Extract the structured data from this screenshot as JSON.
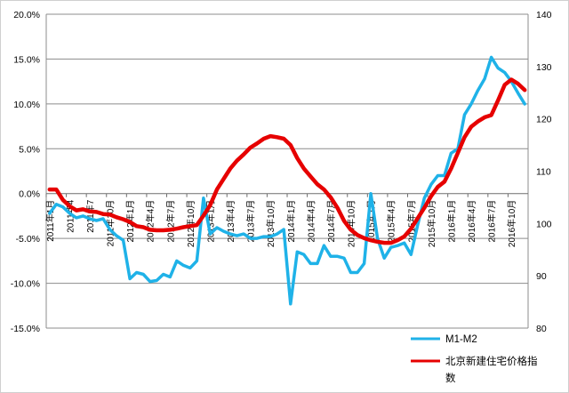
{
  "chart_data": {
    "type": "line",
    "title": "",
    "xlabel": "",
    "ylabel": "",
    "grid": true,
    "legend_position": "bottom-right",
    "y_left": {
      "min": -0.15,
      "max": 0.2,
      "ticks": [
        -0.15,
        -0.1,
        -0.05,
        0,
        0.05,
        0.1,
        0.15,
        0.2
      ],
      "tick_labels": [
        "-15.0%",
        "-10.0%",
        "-5.0%",
        "0.0%",
        "5.0%",
        "10.0%",
        "15.0%",
        "20.0%"
      ]
    },
    "y_right": {
      "min": 80,
      "max": 140,
      "ticks": [
        80,
        90,
        100,
        110,
        120,
        130,
        140
      ],
      "tick_labels": [
        "80",
        "90",
        "100",
        "110",
        "120",
        "130",
        "140"
      ]
    },
    "x_tick_labels": [
      "2011年1月",
      "2011年4月",
      "2011年7月",
      "2011年10月",
      "2012年1月",
      "2012年4月",
      "2012年7月",
      "2012年10月",
      "2013年1月",
      "2013年4月",
      "2013年7月",
      "2013年10月",
      "2014年1月",
      "2014年4月",
      "2014年7月",
      "2014年10月",
      "2015年1月",
      "2015年4月",
      "2015年7月",
      "2015年10月",
      "2016年1月",
      "2016年4月",
      "2016年7月",
      "2016年10月"
    ],
    "x_tick_display": [
      "2011年1月",
      "2011年4",
      "2011年7",
      "2011年10月",
      "2012年1月",
      "2012年4月",
      "2012年7月",
      "2012年10月",
      "2013年1月",
      "2013年4月",
      "2013年7月",
      "2013年10月",
      "2014年1月",
      "2014年4月",
      "2014年7月",
      "2014年10月",
      "2015年1月",
      "2015年4月",
      "2015年7月",
      "2015年10月",
      "2016年1月",
      "2016年4月",
      "2016年7月",
      "2016年10月"
    ],
    "months": [
      "2011-01",
      "2011-02",
      "2011-03",
      "2011-04",
      "2011-05",
      "2011-06",
      "2011-07",
      "2011-08",
      "2011-09",
      "2011-10",
      "2011-11",
      "2011-12",
      "2012-01",
      "2012-02",
      "2012-03",
      "2012-04",
      "2012-05",
      "2012-06",
      "2012-07",
      "2012-08",
      "2012-09",
      "2012-10",
      "2012-11",
      "2012-12",
      "2013-01",
      "2013-02",
      "2013-03",
      "2013-04",
      "2013-05",
      "2013-06",
      "2013-07",
      "2013-08",
      "2013-09",
      "2013-10",
      "2013-11",
      "2013-12",
      "2014-01",
      "2014-02",
      "2014-03",
      "2014-04",
      "2014-05",
      "2014-06",
      "2014-07",
      "2014-08",
      "2014-09",
      "2014-10",
      "2014-11",
      "2014-12",
      "2015-01",
      "2015-02",
      "2015-03",
      "2015-04",
      "2015-05",
      "2015-06",
      "2015-07",
      "2015-08",
      "2015-09",
      "2015-10",
      "2015-11",
      "2015-12",
      "2016-01",
      "2016-02",
      "2016-03",
      "2016-04",
      "2016-05",
      "2016-06",
      "2016-07",
      "2016-08",
      "2016-09",
      "2016-10",
      "2016-11",
      "2016-12"
    ],
    "series": [
      {
        "name": "M1-M2",
        "axis": "left",
        "color": "#1fb2e8",
        "values": [
          -0.022,
          -0.012,
          -0.015,
          -0.022,
          -0.027,
          -0.025,
          -0.028,
          -0.03,
          -0.028,
          -0.04,
          -0.047,
          -0.052,
          -0.095,
          -0.088,
          -0.09,
          -0.098,
          -0.097,
          -0.09,
          -0.093,
          -0.075,
          -0.08,
          -0.083,
          -0.075,
          -0.005,
          -0.045,
          -0.038,
          -0.042,
          -0.045,
          -0.047,
          -0.045,
          -0.05,
          -0.05,
          -0.048,
          -0.048,
          -0.045,
          -0.04,
          -0.123,
          -0.065,
          -0.068,
          -0.078,
          -0.078,
          -0.058,
          -0.07,
          -0.07,
          -0.072,
          -0.088,
          -0.088,
          -0.078,
          0.0,
          -0.05,
          -0.072,
          -0.06,
          -0.058,
          -0.055,
          -0.068,
          -0.035,
          -0.005,
          0.01,
          0.02,
          0.02,
          0.045,
          0.05,
          0.088,
          0.1,
          0.115,
          0.128,
          0.152,
          0.14,
          0.135,
          0.125,
          0.112,
          0.1
        ]
      },
      {
        "name": "北京新建住宅价格指数",
        "axis": "right",
        "color": "#e60000",
        "values": [
          106.5,
          106.5,
          104.5,
          103.3,
          102.5,
          102.7,
          102.3,
          102.2,
          101.8,
          101.7,
          101.2,
          100.8,
          100.3,
          99.5,
          99.3,
          98.8,
          98.7,
          98.7,
          98.8,
          99.0,
          99.3,
          99.5,
          99.7,
          101.5,
          103.5,
          106.5,
          108.5,
          110.5,
          112.0,
          113.2,
          114.5,
          115.3,
          116.2,
          116.7,
          116.5,
          116.2,
          115.0,
          112.5,
          110.5,
          109.0,
          107.5,
          106.5,
          105.0,
          103.0,
          100.5,
          98.8,
          97.8,
          97.2,
          96.8,
          96.5,
          96.3,
          96.3,
          96.8,
          97.5,
          99.0,
          101.0,
          103.0,
          105.2,
          107.0,
          108.0,
          110.5,
          113.5,
          116.5,
          118.5,
          119.5,
          120.3,
          120.7,
          123.5,
          126.5,
          127.5,
          126.7,
          125.5
        ]
      }
    ]
  }
}
